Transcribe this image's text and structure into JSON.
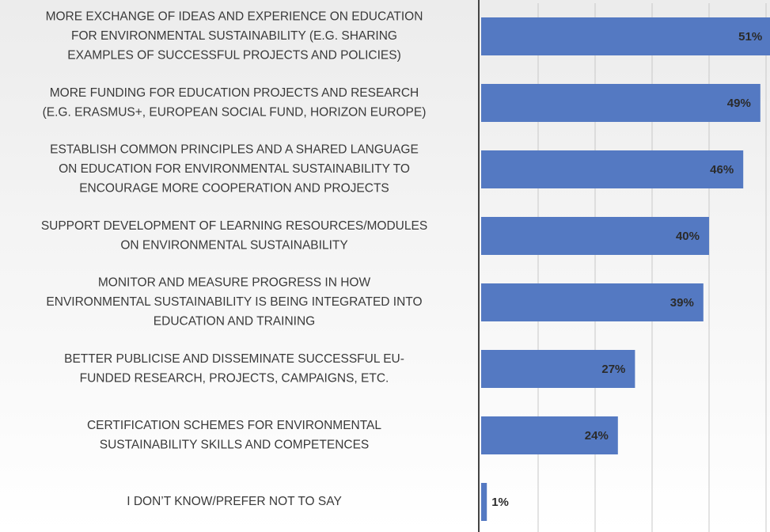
{
  "chart_data": {
    "type": "bar",
    "orientation": "horizontal",
    "categories": [
      "MORE EXCHANGE OF IDEAS AND EXPERIENCE ON EDUCATION\nFOR ENVIRONMENTAL SUSTAINABILITY (E.G. SHARING\nEXAMPLES OF SUCCESSFUL PROJECTS AND POLICIES)",
      "MORE FUNDING FOR EDUCATION PROJECTS AND RESEARCH\n(E.G. ERASMUS+, EUROPEAN SOCIAL FUND, HORIZON EUROPE)",
      "ESTABLISH COMMON PRINCIPLES AND A SHARED LANGUAGE\nON EDUCATION FOR ENVIRONMENTAL SUSTAINABILITY TO\nENCOURAGE MORE COOPERATION AND PROJECTS",
      "SUPPORT DEVELOPMENT OF LEARNING RESOURCES/MODULES\nON ENVIRONMENTAL SUSTAINABILITY",
      "MONITOR AND MEASURE PROGRESS IN HOW\nENVIRONMENTAL SUSTAINABILITY IS BEING INTEGRATED INTO\nEDUCATION AND TRAINING",
      "BETTER PUBLICISE AND DISSEMINATE SUCCESSFUL EU-\nFUNDED RESEARCH, PROJECTS, CAMPAIGNS, ETC.",
      "CERTIFICATION SCHEMES FOR ENVIRONMENTAL\nSUSTAINABILITY SKILLS AND COMPETENCES",
      "I DON’T KNOW/PREFER NOT TO SAY"
    ],
    "values": [
      51,
      49,
      46,
      40,
      39,
      27,
      24,
      1
    ],
    "value_labels": [
      "51%",
      "49%",
      "46%",
      "40%",
      "39%",
      "27%",
      "24%",
      "1%"
    ],
    "color": "#5479c2",
    "xlim": [
      0,
      50
    ],
    "xticks": [
      0,
      10,
      20,
      30,
      40,
      50
    ],
    "grid": true
  }
}
